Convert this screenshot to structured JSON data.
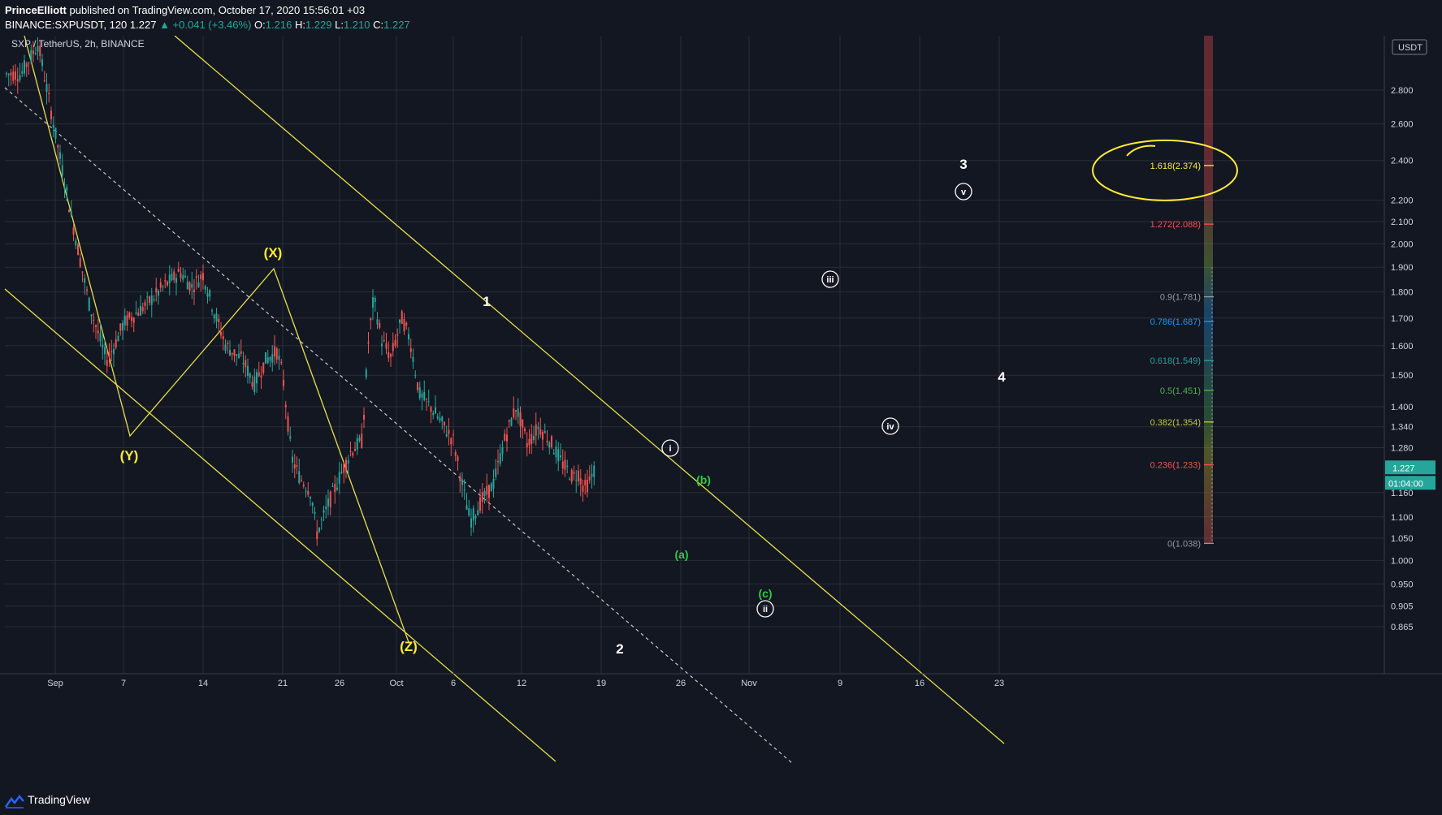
{
  "header": {
    "author": "PrinceElliott",
    "published": "published on TradingView.com, October 17, 2020 15:56:01 +03",
    "symbol_line": "BINANCE:SXPUSDT, 120",
    "last": "1.227",
    "change": "▲ +0.041 (+3.46%)",
    "o_label": "O:",
    "o_value": "1.216",
    "h_label": "H:",
    "h_value": "1.229",
    "l_label": "L:",
    "l_value": "1.210",
    "c_label": "C:",
    "c_value": "1.227"
  },
  "footer": {
    "brand": "TradingView"
  },
  "colors": {
    "background": "#131722",
    "grid": "#2a2e39",
    "up": "#26a69a",
    "down": "#ef5350",
    "channel": "#e8e04b",
    "wave_green": "#2ecc40",
    "price_tag": "#26a69a"
  },
  "chart_data": {
    "type": "candlestick",
    "title": "SXP / TetherUS, 2h, BINANCE",
    "currency": "USDT",
    "y_scale": "log",
    "ylim": [
      0.82,
      3.1
    ],
    "y_ticks": [
      "2.800",
      "2.600",
      "2.400",
      "2.200",
      "2.100",
      "2.000",
      "1.900",
      "1.800",
      "1.700",
      "1.600",
      "1.500",
      "1.400",
      "1.340",
      "1.280",
      "1.160",
      "1.100",
      "1.050",
      "1.000",
      "0.950",
      "0.905",
      "0.865"
    ],
    "x_ticks": [
      {
        "label": "Sep",
        "day": 0
      },
      {
        "label": "7",
        "day": 6
      },
      {
        "label": "14",
        "day": 13
      },
      {
        "label": "21",
        "day": 20
      },
      {
        "label": "26",
        "day": 25
      },
      {
        "label": "Oct",
        "day": 30
      },
      {
        "label": "6",
        "day": 35
      },
      {
        "label": "12",
        "day": 41
      },
      {
        "label": "19",
        "day": 48
      },
      {
        "label": "26",
        "day": 55
      },
      {
        "label": "Nov",
        "day": 61
      },
      {
        "label": "9",
        "day": 69
      },
      {
        "label": "16",
        "day": 76
      },
      {
        "label": "23",
        "day": 83
      }
    ],
    "xlim_days": [
      -3.2,
      85.3
    ],
    "price_path": [
      [
        -3.0,
        2.9
      ],
      [
        -1.5,
        3.1
      ],
      [
        0.0,
        2.55
      ],
      [
        1.5,
        2.1
      ],
      [
        3.0,
        1.75
      ],
      [
        4.5,
        1.55
      ],
      [
        5.2,
        1.6
      ],
      [
        6.0,
        1.68
      ],
      [
        8.0,
        1.75
      ],
      [
        9.5,
        1.82
      ],
      [
        11.0,
        1.88
      ],
      [
        12.0,
        1.82
      ],
      [
        13.0,
        1.87
      ],
      [
        14.0,
        1.72
      ],
      [
        15.0,
        1.6
      ],
      [
        16.5,
        1.55
      ],
      [
        17.5,
        1.47
      ],
      [
        18.5,
        1.55
      ],
      [
        19.5,
        1.58
      ],
      [
        20.0,
        1.5
      ],
      [
        20.8,
        1.25
      ],
      [
        21.5,
        1.2
      ],
      [
        22.5,
        1.16
      ],
      [
        23.0,
        1.06
      ],
      [
        24.0,
        1.13
      ],
      [
        25.0,
        1.2
      ],
      [
        26.0,
        1.27
      ],
      [
        27.0,
        1.3
      ],
      [
        27.5,
        1.6
      ],
      [
        28.0,
        1.78
      ],
      [
        28.7,
        1.62
      ],
      [
        29.5,
        1.56
      ],
      [
        30.5,
        1.7
      ],
      [
        31.2,
        1.62
      ],
      [
        32.0,
        1.44
      ],
      [
        33.0,
        1.4
      ],
      [
        34.0,
        1.35
      ],
      [
        35.0,
        1.3
      ],
      [
        36.0,
        1.15
      ],
      [
        36.5,
        1.09
      ],
      [
        37.5,
        1.14
      ],
      [
        38.5,
        1.18
      ],
      [
        39.5,
        1.3
      ],
      [
        40.5,
        1.4
      ],
      [
        41.0,
        1.35
      ],
      [
        41.5,
        1.29
      ],
      [
        42.5,
        1.34
      ],
      [
        43.5,
        1.3
      ],
      [
        44.5,
        1.24
      ],
      [
        45.5,
        1.2
      ],
      [
        46.0,
        1.21
      ],
      [
        46.5,
        1.17
      ],
      [
        47.0,
        1.19
      ],
      [
        47.5,
        1.227
      ]
    ],
    "wave_labels": [
      {
        "text": "(Y)",
        "color": "yellow"
      },
      {
        "text": "(X)",
        "color": "yellow"
      },
      {
        "text": "(Z)",
        "color": "yellow"
      },
      {
        "text": "1",
        "color": "white"
      },
      {
        "text": "2",
        "color": "white"
      },
      {
        "text": "3",
        "color": "white"
      },
      {
        "text": "4",
        "color": "white"
      },
      {
        "text": "i",
        "color": "white",
        "circled": true
      },
      {
        "text": "ii",
        "color": "white",
        "circled": true
      },
      {
        "text": "iii",
        "color": "white",
        "circled": true
      },
      {
        "text": "iv",
        "color": "white",
        "circled": true
      },
      {
        "text": "v",
        "color": "white",
        "circled": true
      },
      {
        "text": "(a)",
        "color": "green"
      },
      {
        "text": "(b)",
        "color": "green"
      },
      {
        "text": "(c)",
        "color": "green"
      }
    ],
    "fib_levels": [
      {
        "label": "1.618(2.374)",
        "price": 2.374,
        "color": "#ffeb3b"
      },
      {
        "label": "1.272(2.088)",
        "price": 2.088,
        "color": "#ef5350"
      },
      {
        "label": "0.9(1.781)",
        "price": 1.781,
        "color": "#9598a1"
      },
      {
        "label": "0.786(1.687)",
        "price": 1.687,
        "color": "#2196f3"
      },
      {
        "label": "0.618(1.549)",
        "price": 1.549,
        "color": "#26a69a"
      },
      {
        "label": "0.5(1.451)",
        "price": 1.451,
        "color": "#4caf50"
      },
      {
        "label": "0.382(1.354)",
        "price": 1.354,
        "color": "#c0ca33"
      },
      {
        "label": "0.236(1.233)",
        "price": 1.233,
        "color": "#ef5350"
      },
      {
        "label": "0(1.038)",
        "price": 1.038,
        "color": "#9598a1"
      }
    ],
    "last_price": {
      "value": "1.227",
      "countdown": "01:04:00"
    }
  }
}
